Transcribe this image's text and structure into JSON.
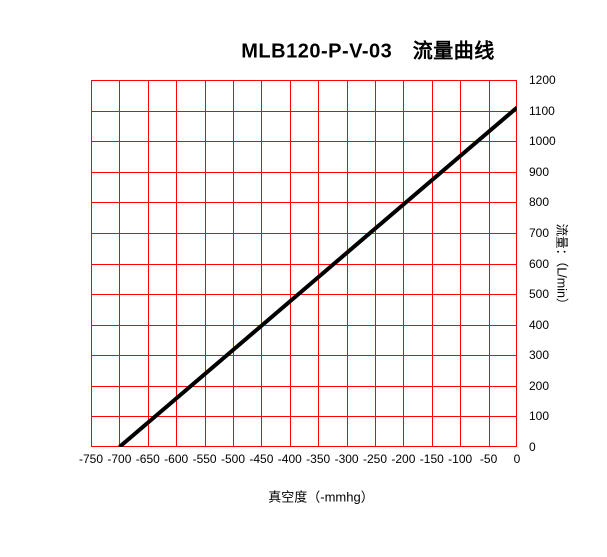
{
  "chart_data": {
    "type": "line",
    "title": "MLB120-P-V-03　流量曲线",
    "xlabel": "真空度（-mmhg）",
    "ylabel": "流量：（L/min）",
    "xlim": [
      -750,
      0
    ],
    "ylim": [
      0,
      1200
    ],
    "x_ticks": [
      -750,
      -700,
      -650,
      -600,
      -550,
      -500,
      -450,
      -400,
      -350,
      -300,
      -250,
      -200,
      -150,
      -100,
      -50,
      0
    ],
    "y_ticks": [
      0,
      100,
      200,
      300,
      400,
      500,
      600,
      700,
      800,
      900,
      1000,
      1100,
      1200
    ],
    "grid": true,
    "grid_color": "#FF0000",
    "background_color": "#FFFFFF",
    "text_color": "#000000",
    "legend": "none",
    "series": [
      {
        "color": "#000000",
        "line_width": 4,
        "points": [
          [
            -700,
            0
          ],
          [
            0,
            1110
          ]
        ]
      }
    ]
  }
}
